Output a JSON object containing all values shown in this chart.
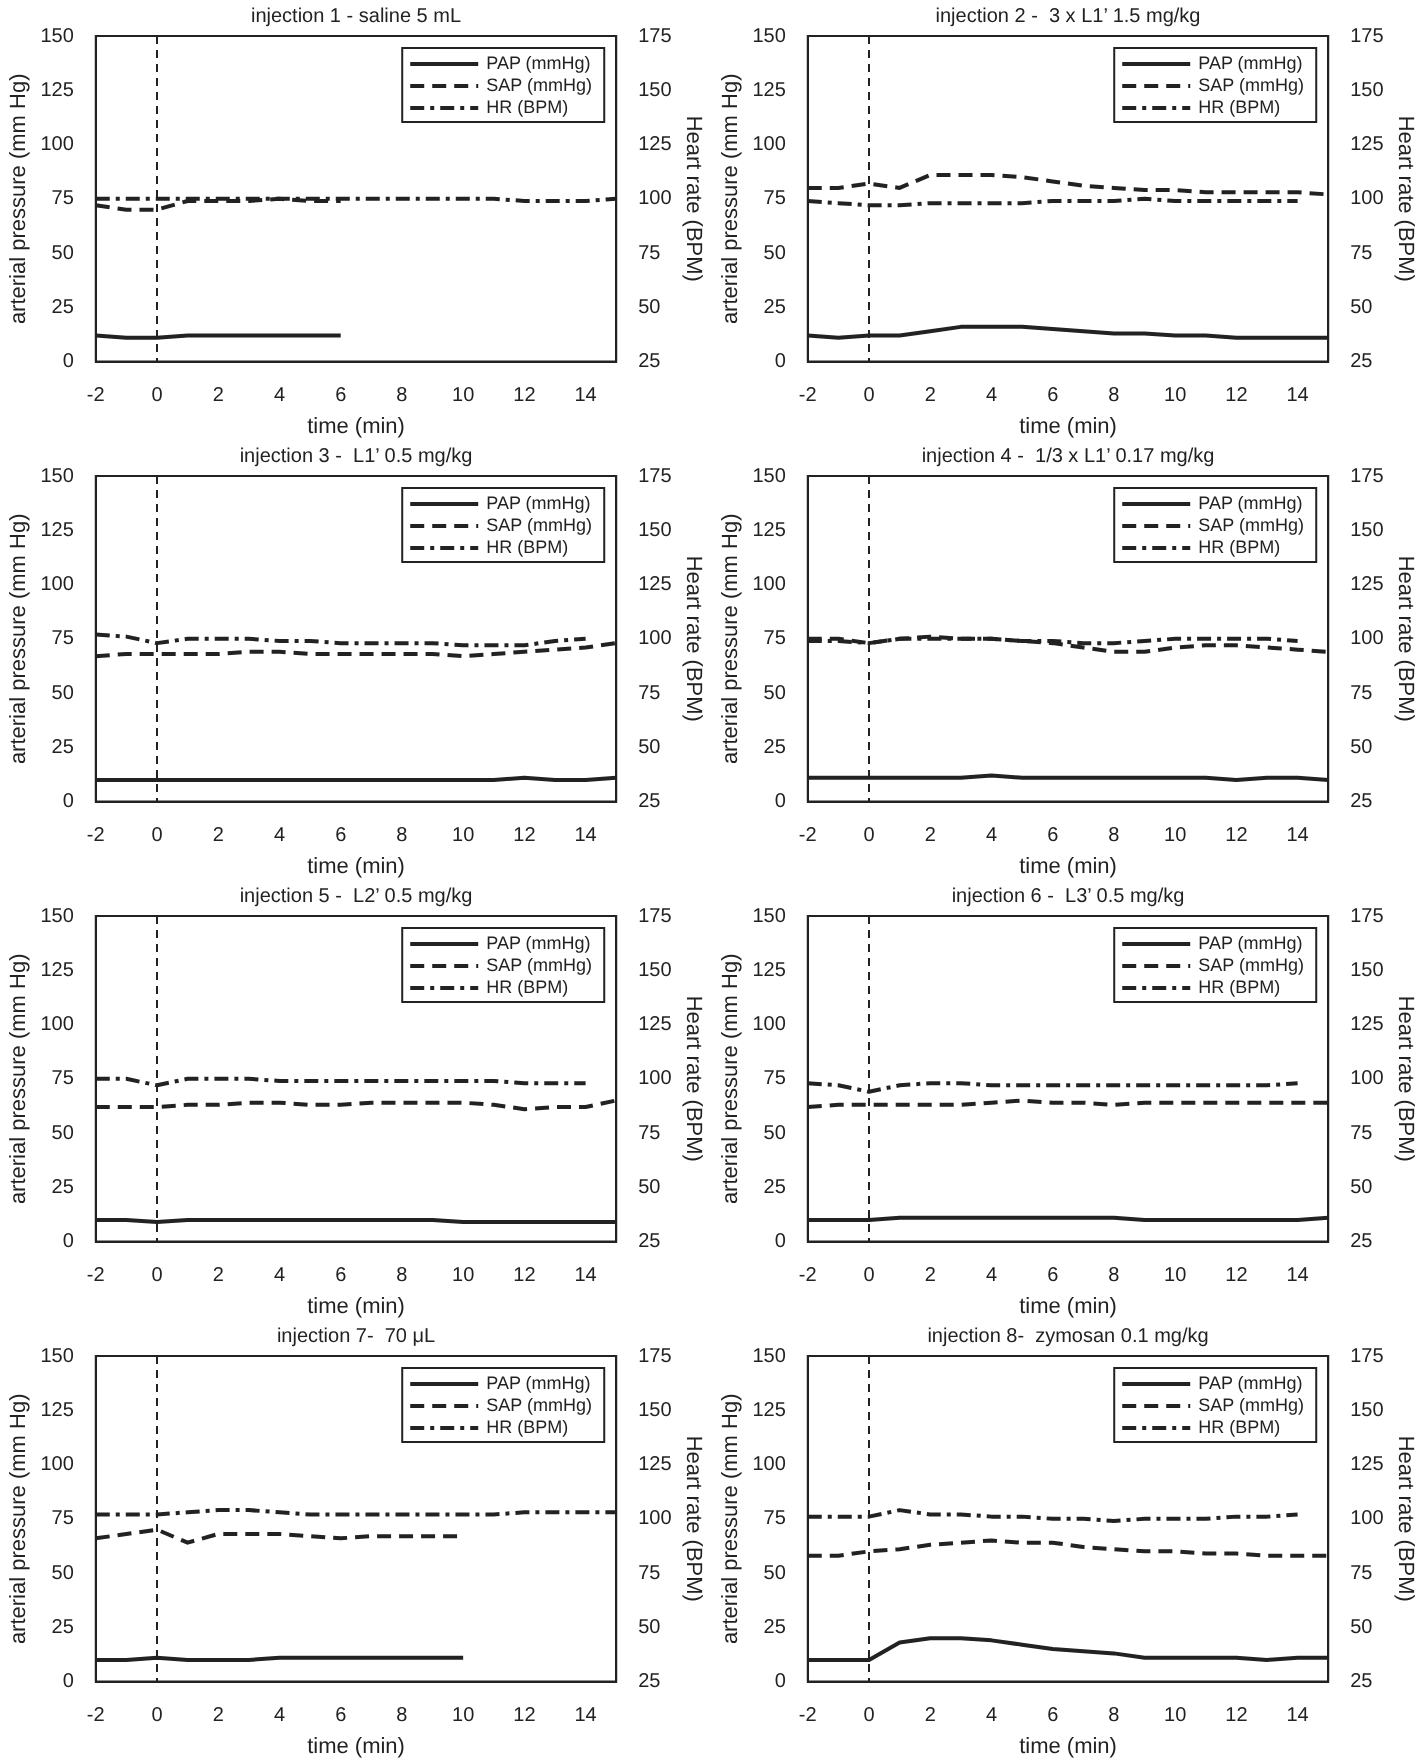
{
  "chart_data": [
    {
      "type": "line",
      "title": "injection 1 - saline 5 mL",
      "xlabel": "time (min)",
      "ylabel": "arterial pressure (mm Hg)",
      "y2label": "Heart rate (BPM)",
      "xlim": [
        -2,
        15
      ],
      "xticks": [
        -2,
        0,
        2,
        4,
        6,
        8,
        10,
        12,
        14
      ],
      "ylim": [
        0,
        150
      ],
      "yticks": [
        0,
        25,
        50,
        75,
        100,
        125,
        150
      ],
      "y2lim": [
        25,
        175
      ],
      "y2ticks": [
        25,
        50,
        75,
        100,
        125,
        150,
        175
      ],
      "legend": "top right",
      "grid": false,
      "marker": "none",
      "ref_lines": [
        {
          "axis": "x",
          "value": 0,
          "line_style": "dashed"
        }
      ],
      "series": [
        {
          "name": "PAP (mmHg)",
          "color": "#222222",
          "line_style": "solid",
          "x": [
            -2,
            -1,
            0,
            1,
            2,
            3,
            4,
            5,
            6
          ],
          "values": [
            12,
            11,
            11,
            12,
            12,
            12,
            12,
            12,
            12
          ]
        },
        {
          "name": "SAP (mmHg)",
          "color": "#222222",
          "line_style": "dashed",
          "x": [
            -2,
            -1,
            0,
            1,
            2,
            3,
            4,
            5,
            6
          ],
          "values": [
            72,
            70,
            70,
            74,
            74,
            74,
            75,
            74,
            74
          ]
        },
        {
          "name": "HR (BPM)",
          "color": "#222222",
          "line_style": "dotted",
          "axis": "y2",
          "x": [
            -2,
            -1,
            0,
            1,
            2,
            3,
            4,
            5,
            6,
            7,
            8,
            9,
            10,
            11,
            12,
            13,
            14,
            15
          ],
          "values": [
            100,
            100,
            100,
            100,
            100,
            100,
            100,
            100,
            100,
            100,
            100,
            100,
            100,
            100,
            99,
            99,
            99,
            100
          ]
        }
      ]
    },
    {
      "type": "line",
      "title": "injection 2 -  3 x L1’ 1.5 mg/kg",
      "xlabel": "time (min)",
      "ylabel": "arterial pressure (mm Hg)",
      "y2label": "Heart rate (BPM)",
      "xlim": [
        -2,
        15
      ],
      "xticks": [
        -2,
        0,
        2,
        4,
        6,
        8,
        10,
        12,
        14
      ],
      "ylim": [
        0,
        150
      ],
      "yticks": [
        0,
        25,
        50,
        75,
        100,
        125,
        150
      ],
      "y2lim": [
        25,
        175
      ],
      "y2ticks": [
        25,
        50,
        75,
        100,
        125,
        150,
        175
      ],
      "legend": "top right",
      "grid": false,
      "marker": "none",
      "ref_lines": [
        {
          "axis": "x",
          "value": 0,
          "line_style": "dashed"
        }
      ],
      "series": [
        {
          "name": "PAP (mmHg)",
          "color": "#222222",
          "line_style": "solid",
          "x": [
            -2,
            -1,
            0,
            1,
            2,
            3,
            4,
            5,
            6,
            7,
            8,
            9,
            10,
            11,
            12,
            13,
            14,
            15
          ],
          "values": [
            12,
            11,
            12,
            12,
            14,
            16,
            16,
            16,
            15,
            14,
            13,
            13,
            12,
            12,
            11,
            11,
            11,
            11
          ]
        },
        {
          "name": "SAP (mmHg)",
          "color": "#222222",
          "line_style": "dashed",
          "x": [
            -2,
            -1,
            0,
            1,
            2,
            3,
            4,
            5,
            6,
            7,
            8,
            9,
            10,
            11,
            12,
            13,
            14,
            15
          ],
          "values": [
            80,
            80,
            82,
            80,
            86,
            86,
            86,
            85,
            83,
            81,
            80,
            79,
            79,
            78,
            78,
            78,
            78,
            77
          ]
        },
        {
          "name": "HR (BPM)",
          "color": "#222222",
          "line_style": "dotted",
          "axis": "y2",
          "x": [
            -2,
            -1,
            0,
            1,
            2,
            3,
            4,
            5,
            6,
            7,
            8,
            9,
            10,
            11,
            12,
            13,
            14
          ],
          "values": [
            99,
            98,
            97,
            97,
            98,
            98,
            98,
            98,
            99,
            99,
            99,
            100,
            99,
            99,
            99,
            99,
            99
          ]
        }
      ]
    },
    {
      "type": "line",
      "title": "injection 3 -  L1’ 0.5 mg/kg",
      "xlabel": "time (min)",
      "ylabel": "arterial pressure (mm Hg)",
      "y2label": "Heart rate (BPM)",
      "xlim": [
        -2,
        15
      ],
      "xticks": [
        -2,
        0,
        2,
        4,
        6,
        8,
        10,
        12,
        14
      ],
      "ylim": [
        0,
        150
      ],
      "yticks": [
        0,
        25,
        50,
        75,
        100,
        125,
        150
      ],
      "y2lim": [
        25,
        175
      ],
      "y2ticks": [
        25,
        50,
        75,
        100,
        125,
        150,
        175
      ],
      "legend": "top right",
      "grid": false,
      "marker": "none",
      "ref_lines": [
        {
          "axis": "x",
          "value": 0,
          "line_style": "dashed"
        }
      ],
      "series": [
        {
          "name": "PAP (mmHg)",
          "color": "#222222",
          "line_style": "solid",
          "x": [
            -2,
            -1,
            0,
            1,
            2,
            3,
            4,
            5,
            6,
            7,
            8,
            9,
            10,
            11,
            12,
            13,
            14,
            15
          ],
          "values": [
            10,
            10,
            10,
            10,
            10,
            10,
            10,
            10,
            10,
            10,
            10,
            10,
            10,
            10,
            11,
            10,
            10,
            11
          ]
        },
        {
          "name": "SAP (mmHg)",
          "color": "#222222",
          "line_style": "dashed",
          "x": [
            -2,
            -1,
            0,
            1,
            2,
            3,
            4,
            5,
            6,
            7,
            8,
            9,
            10,
            11,
            12,
            13,
            14,
            15
          ],
          "values": [
            67,
            68,
            68,
            68,
            68,
            69,
            69,
            68,
            68,
            68,
            68,
            68,
            67,
            68,
            69,
            70,
            71,
            73
          ]
        },
        {
          "name": "HR (BPM)",
          "color": "#222222",
          "line_style": "dotted",
          "axis": "y2",
          "x": [
            -2,
            -1,
            0,
            1,
            2,
            3,
            4,
            5,
            6,
            7,
            8,
            9,
            10,
            11,
            12,
            13,
            14
          ],
          "values": [
            102,
            101,
            98,
            100,
            100,
            100,
            99,
            99,
            98,
            98,
            98,
            98,
            97,
            97,
            97,
            99,
            100
          ]
        }
      ]
    },
    {
      "type": "line",
      "title": "injection 4 -  1/3 x L1’ 0.17 mg/kg",
      "xlabel": "time (min)",
      "ylabel": "arterial pressure (mm Hg)",
      "y2label": "Heart rate (BPM)",
      "xlim": [
        -2,
        15
      ],
      "xticks": [
        -2,
        0,
        2,
        4,
        6,
        8,
        10,
        12,
        14
      ],
      "ylim": [
        0,
        150
      ],
      "yticks": [
        0,
        25,
        50,
        75,
        100,
        125,
        150
      ],
      "y2lim": [
        25,
        175
      ],
      "y2ticks": [
        25,
        50,
        75,
        100,
        125,
        150,
        175
      ],
      "legend": "top right",
      "grid": false,
      "marker": "none",
      "ref_lines": [
        {
          "axis": "x",
          "value": 0,
          "line_style": "dashed"
        }
      ],
      "series": [
        {
          "name": "PAP (mmHg)",
          "color": "#222222",
          "line_style": "solid",
          "x": [
            -2,
            -1,
            0,
            1,
            2,
            3,
            4,
            5,
            6,
            7,
            8,
            9,
            10,
            11,
            12,
            13,
            14,
            15
          ],
          "values": [
            11,
            11,
            11,
            11,
            11,
            11,
            12,
            11,
            11,
            11,
            11,
            11,
            11,
            11,
            10,
            11,
            11,
            10
          ]
        },
        {
          "name": "SAP (mmHg)",
          "color": "#222222",
          "line_style": "dashed",
          "x": [
            -2,
            -1,
            0,
            1,
            2,
            3,
            4,
            5,
            6,
            7,
            8,
            9,
            10,
            11,
            12,
            13,
            14,
            15
          ],
          "values": [
            75,
            75,
            73,
            75,
            76,
            75,
            75,
            74,
            73,
            71,
            69,
            69,
            71,
            72,
            72,
            71,
            70,
            69
          ]
        },
        {
          "name": "HR (BPM)",
          "color": "#222222",
          "line_style": "dotted",
          "axis": "y2",
          "x": [
            -2,
            -1,
            0,
            1,
            2,
            3,
            4,
            5,
            6,
            7,
            8,
            9,
            10,
            11,
            12,
            13,
            14
          ],
          "values": [
            99,
            99,
            98,
            100,
            100,
            100,
            100,
            99,
            99,
            98,
            98,
            99,
            100,
            100,
            100,
            100,
            99
          ]
        }
      ]
    },
    {
      "type": "line",
      "title": "injection 5 -  L2’ 0.5 mg/kg",
      "xlabel": "time (min)",
      "ylabel": "arterial pressure (mm Hg)",
      "y2label": "Heart rate (BPM)",
      "xlim": [
        -2,
        15
      ],
      "xticks": [
        -2,
        0,
        2,
        4,
        6,
        8,
        10,
        12,
        14
      ],
      "ylim": [
        0,
        150
      ],
      "yticks": [
        0,
        25,
        50,
        75,
        100,
        125,
        150
      ],
      "y2lim": [
        25,
        175
      ],
      "y2ticks": [
        25,
        50,
        75,
        100,
        125,
        150,
        175
      ],
      "legend": "top right",
      "grid": false,
      "marker": "none",
      "ref_lines": [
        {
          "axis": "x",
          "value": 0,
          "line_style": "dashed"
        }
      ],
      "series": [
        {
          "name": "PAP (mmHg)",
          "color": "#222222",
          "line_style": "solid",
          "x": [
            -2,
            -1,
            0,
            1,
            2,
            3,
            4,
            5,
            6,
            7,
            8,
            9,
            10,
            11,
            12,
            13,
            14,
            15
          ],
          "values": [
            10,
            10,
            9,
            10,
            10,
            10,
            10,
            10,
            10,
            10,
            10,
            10,
            9,
            9,
            9,
            9,
            9,
            9
          ]
        },
        {
          "name": "SAP (mmHg)",
          "color": "#222222",
          "line_style": "dashed",
          "x": [
            -2,
            -1,
            0,
            1,
            2,
            3,
            4,
            5,
            6,
            7,
            8,
            9,
            10,
            11,
            12,
            13,
            14,
            15
          ],
          "values": [
            62,
            62,
            62,
            63,
            63,
            64,
            64,
            63,
            63,
            64,
            64,
            64,
            64,
            63,
            61,
            62,
            62,
            65
          ]
        },
        {
          "name": "HR (BPM)",
          "color": "#222222",
          "line_style": "dotted",
          "axis": "y2",
          "x": [
            -2,
            -1,
            0,
            1,
            2,
            3,
            4,
            5,
            6,
            7,
            8,
            9,
            10,
            11,
            12,
            13,
            14
          ],
          "values": [
            100,
            100,
            97,
            100,
            100,
            100,
            99,
            99,
            99,
            99,
            99,
            99,
            99,
            99,
            98,
            98,
            98
          ]
        }
      ]
    },
    {
      "type": "line",
      "title": "injection 6 -  L3’ 0.5 mg/kg",
      "xlabel": "time (min)",
      "ylabel": "arterial pressure (mm Hg)",
      "y2label": "Heart rate (BPM)",
      "xlim": [
        -2,
        15
      ],
      "xticks": [
        -2,
        0,
        2,
        4,
        6,
        8,
        10,
        12,
        14
      ],
      "ylim": [
        0,
        150
      ],
      "yticks": [
        0,
        25,
        50,
        75,
        100,
        125,
        150
      ],
      "y2lim": [
        25,
        175
      ],
      "y2ticks": [
        25,
        50,
        75,
        100,
        125,
        150,
        175
      ],
      "legend": "top right",
      "grid": false,
      "marker": "none",
      "ref_lines": [
        {
          "axis": "x",
          "value": 0,
          "line_style": "dashed"
        }
      ],
      "series": [
        {
          "name": "PAP (mmHg)",
          "color": "#222222",
          "line_style": "solid",
          "x": [
            -2,
            -1,
            0,
            1,
            2,
            3,
            4,
            5,
            6,
            7,
            8,
            9,
            10,
            11,
            12,
            13,
            14,
            15
          ],
          "values": [
            10,
            10,
            10,
            11,
            11,
            11,
            11,
            11,
            11,
            11,
            11,
            10,
            10,
            10,
            10,
            10,
            10,
            11
          ]
        },
        {
          "name": "SAP (mmHg)",
          "color": "#222222",
          "line_style": "dashed",
          "x": [
            -2,
            -1,
            0,
            1,
            2,
            3,
            4,
            5,
            6,
            7,
            8,
            9,
            10,
            11,
            12,
            13,
            14,
            15
          ],
          "values": [
            62,
            63,
            63,
            63,
            63,
            63,
            64,
            65,
            64,
            64,
            63,
            64,
            64,
            64,
            64,
            64,
            64,
            64
          ]
        },
        {
          "name": "HR (BPM)",
          "color": "#222222",
          "line_style": "dotted",
          "axis": "y2",
          "x": [
            -2,
            -1,
            0,
            1,
            2,
            3,
            4,
            5,
            6,
            7,
            8,
            9,
            10,
            11,
            12,
            13,
            14
          ],
          "values": [
            98,
            97,
            94,
            97,
            98,
            98,
            97,
            97,
            97,
            97,
            97,
            97,
            97,
            97,
            97,
            97,
            98
          ]
        }
      ]
    },
    {
      "type": "line",
      "title": "injection 7-  70 μL",
      "xlabel": "time (min)",
      "ylabel": "arterial pressure (mm Hg)",
      "y2label": "Heart rate (BPM)",
      "xlim": [
        -2,
        15
      ],
      "xticks": [
        -2,
        0,
        2,
        4,
        6,
        8,
        10,
        12,
        14
      ],
      "ylim": [
        0,
        150
      ],
      "yticks": [
        0,
        25,
        50,
        75,
        100,
        125,
        150
      ],
      "y2lim": [
        25,
        175
      ],
      "y2ticks": [
        25,
        50,
        75,
        100,
        125,
        150,
        175
      ],
      "legend": "top right",
      "grid": false,
      "marker": "none",
      "ref_lines": [
        {
          "axis": "x",
          "value": 0,
          "line_style": "dashed"
        }
      ],
      "series": [
        {
          "name": "PAP (mmHg)",
          "color": "#222222",
          "line_style": "solid",
          "x": [
            -2,
            -1,
            0,
            1,
            2,
            3,
            4,
            5,
            6,
            7,
            8,
            9,
            10
          ],
          "values": [
            10,
            10,
            11,
            10,
            10,
            10,
            11,
            11,
            11,
            11,
            11,
            11,
            11
          ]
        },
        {
          "name": "SAP (mmHg)",
          "color": "#222222",
          "line_style": "dashed",
          "x": [
            -2,
            -1,
            0,
            1,
            2,
            3,
            4,
            5,
            6,
            7,
            8,
            9,
            10
          ],
          "values": [
            66,
            68,
            70,
            64,
            68,
            68,
            68,
            67,
            66,
            67,
            67,
            67,
            67
          ]
        },
        {
          "name": "HR (BPM)",
          "color": "#222222",
          "line_style": "dotted",
          "axis": "y2",
          "x": [
            -2,
            -1,
            0,
            1,
            2,
            3,
            4,
            5,
            6,
            7,
            8,
            9,
            10,
            11,
            12,
            13,
            14,
            15
          ],
          "values": [
            102,
            102,
            102,
            103,
            104,
            104,
            103,
            102,
            102,
            102,
            102,
            102,
            102,
            102,
            103,
            103,
            103,
            103
          ]
        }
      ]
    },
    {
      "type": "line",
      "title": "injection 8-  zymosan 0.1 mg/kg",
      "xlabel": "time (min)",
      "ylabel": "arterial pressure (mm Hg)",
      "y2label": "Heart rate (BPM)",
      "xlim": [
        -2,
        15
      ],
      "xticks": [
        -2,
        0,
        2,
        4,
        6,
        8,
        10,
        12,
        14
      ],
      "ylim": [
        0,
        150
      ],
      "yticks": [
        0,
        25,
        50,
        75,
        100,
        125,
        150
      ],
      "y2lim": [
        25,
        175
      ],
      "y2ticks": [
        25,
        50,
        75,
        100,
        125,
        150,
        175
      ],
      "legend": "top right",
      "grid": false,
      "marker": "none",
      "ref_lines": [
        {
          "axis": "x",
          "value": 0,
          "line_style": "dashed"
        }
      ],
      "series": [
        {
          "name": "PAP (mmHg)",
          "color": "#222222",
          "line_style": "solid",
          "x": [
            -2,
            -1,
            0,
            1,
            2,
            3,
            4,
            5,
            6,
            7,
            8,
            9,
            10,
            11,
            12,
            13,
            14,
            15
          ],
          "values": [
            10,
            10,
            10,
            18,
            20,
            20,
            19,
            17,
            15,
            14,
            13,
            11,
            11,
            11,
            11,
            10,
            11,
            11
          ]
        },
        {
          "name": "SAP (mmHg)",
          "color": "#222222",
          "line_style": "dashed",
          "x": [
            -2,
            -1,
            0,
            1,
            2,
            3,
            4,
            5,
            6,
            7,
            8,
            9,
            10,
            11,
            12,
            13,
            14,
            15
          ],
          "values": [
            58,
            58,
            60,
            61,
            63,
            64,
            65,
            64,
            64,
            62,
            61,
            60,
            60,
            59,
            59,
            58,
            58,
            58
          ]
        },
        {
          "name": "HR (BPM)",
          "color": "#222222",
          "line_style": "dotted",
          "axis": "y2",
          "x": [
            -2,
            -1,
            0,
            1,
            2,
            3,
            4,
            5,
            6,
            7,
            8,
            9,
            10,
            11,
            12,
            13,
            14
          ],
          "values": [
            101,
            101,
            101,
            104,
            102,
            102,
            101,
            101,
            100,
            100,
            99,
            100,
            100,
            100,
            101,
            101,
            102
          ]
        }
      ]
    }
  ]
}
